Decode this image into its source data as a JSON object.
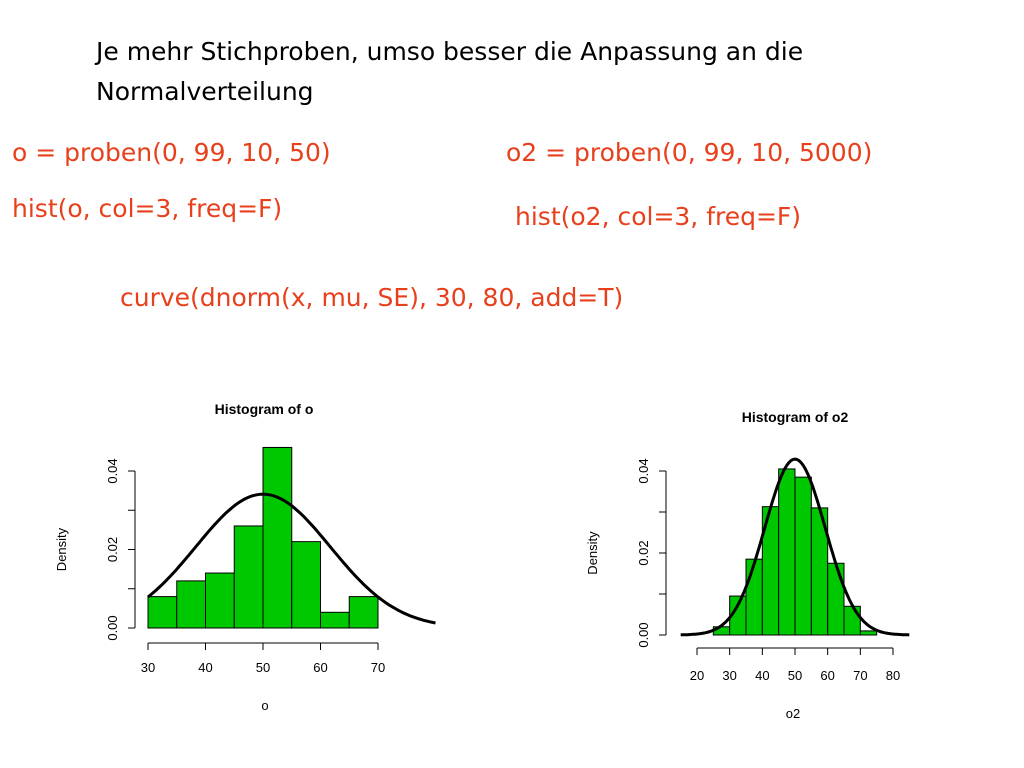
{
  "heading": "Je mehr Stichproben, umso besser die Anpassung an die Normalverteilung",
  "code": {
    "o": "o = proben(0, 99, 10, 50)",
    "hist_o": "hist(o, col=3, freq=F)",
    "o2": "o2 = proben(0, 99, 10, 5000)",
    "hist_o2": "hist(o2, col=3, freq=F)",
    "curve": "curve(dnorm(x, mu, SE), 30, 80, add=T)"
  },
  "colors": {
    "code": "#e8401c",
    "bars": "#00c800",
    "curve": "#000000"
  },
  "chart_data": [
    {
      "type": "bar",
      "title": "Histogram of o",
      "xlabel": "o",
      "ylabel": "Density",
      "bin_edges": [
        30,
        35,
        40,
        45,
        50,
        55,
        60,
        65,
        70
      ],
      "values": [
        0.008,
        0.012,
        0.014,
        0.026,
        0.046,
        0.022,
        0.004,
        0.008
      ],
      "xticks": [
        "30",
        "40",
        "50",
        "60",
        "70"
      ],
      "yticks": [
        "0.00",
        "0.02",
        "0.04"
      ],
      "xlim": [
        30,
        70
      ],
      "ylim": [
        0,
        0.04
      ],
      "curve": {
        "mu": 50,
        "sd": 11.7,
        "from": 30,
        "to": 80
      }
    },
    {
      "type": "bar",
      "title": "Histogram of o2",
      "xlabel": "o2",
      "ylabel": "Density",
      "bin_edges": [
        25,
        30,
        35,
        40,
        45,
        50,
        55,
        60,
        65,
        70,
        75
      ],
      "values": [
        0.002,
        0.0095,
        0.0185,
        0.0313,
        0.0405,
        0.0385,
        0.031,
        0.0175,
        0.007,
        0.001
      ],
      "xticks": [
        "20",
        "30",
        "40",
        "50",
        "60",
        "70",
        "80"
      ],
      "yticks": [
        "0.00",
        "0.02",
        "0.04"
      ],
      "xlim": [
        20,
        80
      ],
      "ylim": [
        0,
        0.04
      ],
      "curve": {
        "mu": 50,
        "sd": 9.3,
        "from": 15,
        "to": 85
      }
    }
  ]
}
